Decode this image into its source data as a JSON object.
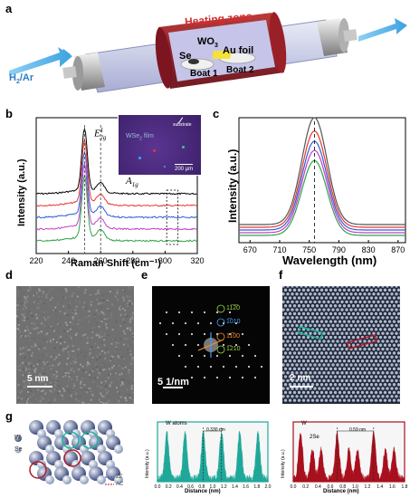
{
  "panels": {
    "a": {
      "letter": "a",
      "heating_zone": "Heating zone",
      "gas": "H",
      "gas_sub": "2",
      "gas_rest": "/Ar",
      "wo": "WO",
      "wo_sub": "3",
      "se": "Se",
      "au": "Au foil",
      "boat1": "Boat 1",
      "boat2": "Boat 2"
    },
    "b": {
      "letter": "b",
      "ylabel": "Intensity (a.u.)",
      "xlabel": "Raman Shift (cm⁻¹)",
      "e2g": "E",
      "e2g_sup": "1",
      "e2g_sub": "2g",
      "a1g": "A",
      "a1g_sub": "1g",
      "inset_label": "WSe",
      "inset_label_sub": "2",
      "inset_label_rest": " film",
      "inset_substrate": "substrate",
      "inset_scale": "200 μm"
    },
    "c": {
      "letter": "c",
      "ylabel": "Intensity (a.u.)",
      "xlabel": "Wavelength (nm)"
    },
    "d": {
      "letter": "d",
      "scale": "5 nm"
    },
    "e": {
      "letter": "e",
      "scale": "5 1/nm",
      "spots": [
        "11̅2̅0",
        "1̅010",
        "11̅00",
        "1̅210"
      ]
    },
    "f": {
      "letter": "f",
      "scale": "2 nm"
    },
    "g": {
      "letter": "g",
      "w": "W",
      "se": "Se",
      "zz": "ZZ",
      "ac": "AC",
      "p1_title": "W atoms",
      "p1_dist": "0.330 nm",
      "p2_title": "W",
      "p2_se": "2Se",
      "p2_dist": "0.59 nm",
      "ylabel": "Intensity (a.u.)",
      "xlabel": "Distance (nm)"
    }
  },
  "chart_data": [
    {
      "type": "line",
      "panel": "b",
      "xlabel": "Raman Shift (cm⁻¹)",
      "ylabel": "Intensity (a.u.)",
      "xlim": [
        220,
        320
      ],
      "xticks": [
        220,
        240,
        260,
        280,
        300,
        320
      ],
      "peaks": [
        250,
        260
      ],
      "series": [
        {
          "color": "#000000",
          "values": []
        },
        {
          "color": "#e8382f",
          "values": []
        },
        {
          "color": "#2f5fd8",
          "values": []
        },
        {
          "color": "#c040c8",
          "values": []
        },
        {
          "color": "#2fa34a",
          "values": []
        }
      ]
    },
    {
      "type": "line",
      "panel": "c",
      "xlabel": "Wavelength (nm)",
      "ylabel": "Intensity (a.u.)",
      "xlim": [
        655,
        880
      ],
      "xticks": [
        670,
        710,
        750,
        790,
        830,
        870
      ],
      "center": 757,
      "series": [
        {
          "color": "#555555",
          "peak": 1.0
        },
        {
          "color": "#e8382f",
          "peak": 0.9
        },
        {
          "color": "#2f5fd8",
          "peak": 0.83
        },
        {
          "color": "#c040c8",
          "peak": 0.77
        },
        {
          "color": "#2fa34a",
          "peak": 0.7
        }
      ]
    },
    {
      "type": "line",
      "panel": "g1",
      "xlabel": "Distance (nm)",
      "ylabel": "Intensity (a.u.)",
      "xlim": [
        0.0,
        2.0
      ],
      "xticks": [
        0.0,
        0.2,
        0.4,
        0.6,
        0.8,
        1.0,
        1.2,
        1.4,
        1.6,
        1.8,
        2.0
      ],
      "peak_positions": [
        0.17,
        0.5,
        0.83,
        1.16,
        1.49,
        1.82
      ],
      "color": "#1fa89a"
    },
    {
      "type": "line",
      "panel": "g2",
      "xlabel": "Distance (nm)",
      "ylabel": "Intensity (a.u.)",
      "xlim": [
        0.0,
        1.8
      ],
      "xticks": [
        0.0,
        0.2,
        0.4,
        0.6,
        0.8,
        1.0,
        1.2,
        1.4,
        1.6,
        1.8
      ],
      "peak_positions": [
        0.12,
        0.31,
        0.45,
        0.71,
        0.9,
        1.04,
        1.3,
        1.49,
        1.63
      ],
      "color": "#a8101e"
    }
  ]
}
